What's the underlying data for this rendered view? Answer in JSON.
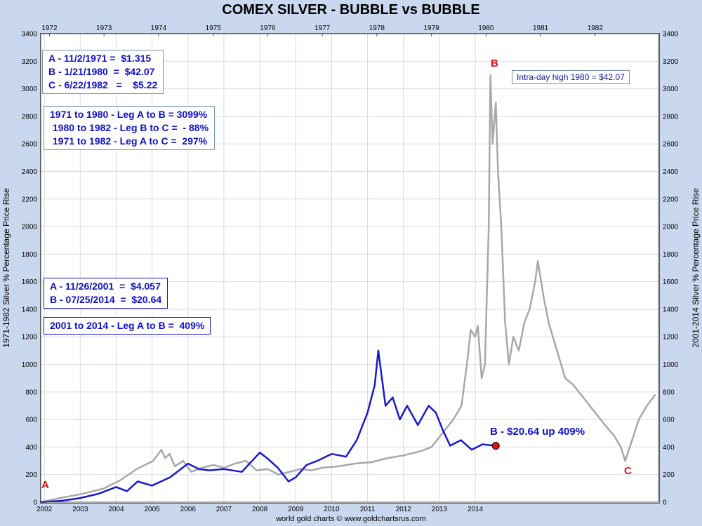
{
  "title": "COMEX SILVER - BUBBLE vs BUBBLE",
  "footer": "world gold charts © www.goldchartsrus.com",
  "ylabel_left": "1971-1982 Silver % Percentage Price Rise",
  "ylabel_right": "2001-2014 Silver % Percentage Price Rise",
  "box_1970s": "A - 11/2/1971 =  $1.315\nB - 1/21/1980  =  $42.07\nC - 6/22/1982   =    $5.22",
  "box_legs_1970s": "1971 to 1980 - Leg A to B = 3099%\n 1980 to 1982 - Leg B to C =  - 88%\n 1971 to 1982 - Leg A to C =  297%",
  "box_2000s": "A - 11/26/2001  =  $4.057\nB - 07/25/2014  =  $20.64",
  "box_legs_2000s": "2001 to 2014 - Leg A to B =  409%",
  "intraday_note": "Intra-day high 1980 = $42.07",
  "marker_A": "A",
  "marker_B_top": "B",
  "marker_C": "C",
  "marker_B_current": "B - $20.64 up 409%",
  "colors": {
    "series_1970s": "#a8a8a8",
    "series_2000s": "#1818d0",
    "marker": "#e01010",
    "background": "#c9d8ee"
  },
  "chart_data": {
    "type": "line",
    "title": "COMEX SILVER - BUBBLE vs BUBBLE",
    "ylabel": "1971-1982 Silver % Percentage Price Rise",
    "ylabel_right": "2001-2014 Silver % Percentage Price Rise",
    "ylim": [
      0,
      3400
    ],
    "yticks": [
      0,
      200,
      400,
      600,
      800,
      1000,
      1200,
      1400,
      1600,
      1800,
      2000,
      2200,
      2400,
      2600,
      2800,
      3000,
      3200,
      3400
    ],
    "grid": true,
    "top_axis": {
      "labels": [
        "1972",
        "1973",
        "1974",
        "1975",
        "1976",
        "1977",
        "1978",
        "1979",
        "1980",
        "1981",
        "1982"
      ],
      "positions": [
        1972,
        1973,
        1974,
        1975,
        1976,
        1977,
        1978,
        1979,
        1980,
        1981,
        1982
      ],
      "range": [
        1971.84,
        1983.16
      ]
    },
    "bottom_axis": {
      "labels": [
        "2002",
        "2003",
        "2004",
        "2005",
        "2006",
        "2007",
        "2008",
        "2009",
        "2010",
        "2011",
        "2012",
        "2013",
        "2014"
      ],
      "positions": [
        2002,
        2003,
        2004,
        2005,
        2006,
        2007,
        2008,
        2009,
        2010,
        2011,
        2012,
        2013,
        2014
      ],
      "range": [
        2001.9,
        2019.1
      ]
    },
    "series": [
      {
        "axis": "top",
        "x": [
          1971.84,
          1972.2,
          1972.6,
          1973.0,
          1973.3,
          1973.6,
          1973.9,
          1974.05,
          1974.12,
          1974.2,
          1974.3,
          1974.45,
          1974.6,
          1974.8,
          1975.0,
          1975.2,
          1975.4,
          1975.6,
          1975.8,
          1976.0,
          1976.2,
          1976.4,
          1976.6,
          1976.8,
          1977.0,
          1977.3,
          1977.6,
          1977.9,
          1978.2,
          1978.5,
          1978.8,
          1979.0,
          1979.2,
          1979.4,
          1979.55,
          1979.65,
          1979.72,
          1979.8,
          1979.85,
          1979.92,
          1979.98,
          1980.05,
          1980.08,
          1980.12,
          1980.18,
          1980.22,
          1980.28,
          1980.35,
          1980.42,
          1980.5,
          1980.6,
          1980.7,
          1980.8,
          1980.9,
          1980.95,
          1981.05,
          1981.15,
          1981.3,
          1981.45,
          1981.6,
          1981.8,
          1982.0,
          1982.2,
          1982.35,
          1982.47,
          1982.55,
          1982.65,
          1982.8,
          1982.95,
          1983.1
        ],
        "y": [
          0,
          30,
          60,
          100,
          160,
          240,
          300,
          380,
          320,
          350,
          260,
          300,
          220,
          250,
          270,
          250,
          280,
          300,
          230,
          240,
          200,
          220,
          240,
          230,
          250,
          260,
          280,
          290,
          320,
          340,
          370,
          400,
          500,
          600,
          700,
          1000,
          1250,
          1200,
          1280,
          900,
          1000,
          2000,
          3099,
          2600,
          2900,
          2400,
          2000,
          1300,
          1000,
          1200,
          1100,
          1300,
          1400,
          1600,
          1750,
          1500,
          1300,
          1100,
          900,
          850,
          750,
          650,
          550,
          480,
          400,
          300,
          420,
          600,
          700,
          780
        ]
      },
      {
        "axis": "bottom",
        "x": [
          2001.9,
          2002.5,
          2003.0,
          2003.5,
          2004.0,
          2004.3,
          2004.6,
          2005.0,
          2005.5,
          2006.0,
          2006.3,
          2006.6,
          2007.0,
          2007.5,
          2008.0,
          2008.2,
          2008.5,
          2008.8,
          2009.0,
          2009.3,
          2009.6,
          2010.0,
          2010.4,
          2010.7,
          2011.0,
          2011.2,
          2011.3,
          2011.4,
          2011.5,
          2011.7,
          2011.9,
          2012.1,
          2012.4,
          2012.7,
          2012.9,
          2013.1,
          2013.3,
          2013.6,
          2013.9,
          2014.2,
          2014.57
        ],
        "y": [
          0,
          10,
          30,
          60,
          110,
          80,
          150,
          120,
          180,
          280,
          240,
          230,
          240,
          220,
          360,
          320,
          250,
          150,
          180,
          270,
          300,
          350,
          330,
          450,
          650,
          850,
          1100,
          900,
          700,
          760,
          600,
          700,
          560,
          700,
          650,
          520,
          410,
          450,
          380,
          420,
          409
        ]
      }
    ],
    "annotations": [
      "Intra-day high 1980 = $42.07",
      "B - $20.64 up 409%"
    ]
  }
}
